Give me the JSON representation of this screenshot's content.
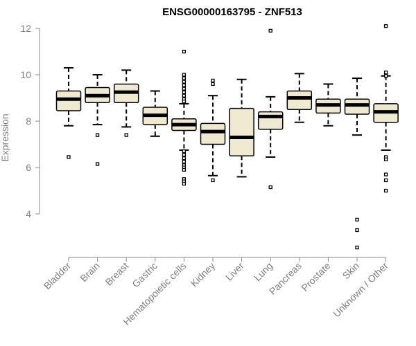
{
  "chart_data": {
    "type": "boxplot",
    "title": "ENSG00000163795 - ZNF513",
    "xlabel": "",
    "ylabel": "Expression",
    "ylim": [
      2.3,
      12.3
    ],
    "yticks": [
      4,
      6,
      8,
      10,
      12
    ],
    "box_fill": "#efe9d2",
    "categories": [
      "Bladder",
      "Brain",
      "Breast",
      "Gastric",
      "Hematopoietic cells",
      "Kidney",
      "Liver",
      "Lung",
      "Pancreas",
      "Prostate",
      "Skin",
      "Unknown / Other"
    ],
    "boxes": [
      {
        "whisker_low": 7.8,
        "q1": 8.45,
        "median": 8.95,
        "q3": 9.3,
        "whisker_high": 10.3,
        "outliers": [
          6.45
        ]
      },
      {
        "whisker_low": 7.85,
        "q1": 8.8,
        "median": 9.1,
        "q3": 9.45,
        "whisker_high": 10.0,
        "outliers": [
          7.4,
          6.15
        ]
      },
      {
        "whisker_low": 7.75,
        "q1": 8.8,
        "median": 9.25,
        "q3": 9.6,
        "whisker_high": 10.2,
        "outliers": [
          7.4
        ]
      },
      {
        "whisker_low": 7.35,
        "q1": 7.85,
        "median": 8.25,
        "q3": 8.6,
        "whisker_high": 9.3,
        "outliers": []
      },
      {
        "whisker_low": 6.75,
        "q1": 7.6,
        "median": 7.85,
        "q3": 8.1,
        "whisker_high": 8.75,
        "outliers": [
          11.0,
          10.0,
          9.85,
          9.7,
          9.55,
          9.4,
          9.25,
          9.1,
          8.95,
          8.85,
          6.7,
          6.55,
          6.4,
          6.25,
          6.1,
          6.0,
          5.9,
          5.5,
          5.4,
          5.3
        ]
      },
      {
        "whisker_low": 5.65,
        "q1": 7.0,
        "median": 7.55,
        "q3": 7.9,
        "whisker_high": 9.1,
        "outliers": [
          9.75,
          9.6,
          5.45
        ]
      },
      {
        "whisker_low": 5.6,
        "q1": 6.5,
        "median": 7.3,
        "q3": 8.55,
        "whisker_high": 9.8,
        "outliers": []
      },
      {
        "whisker_low": 6.45,
        "q1": 7.65,
        "median": 8.2,
        "q3": 8.4,
        "whisker_high": 9.05,
        "outliers": [
          11.9,
          5.15
        ]
      },
      {
        "whisker_low": 7.95,
        "q1": 8.5,
        "median": 9.0,
        "q3": 9.3,
        "whisker_high": 10.05,
        "outliers": []
      },
      {
        "whisker_low": 7.8,
        "q1": 8.35,
        "median": 8.7,
        "q3": 8.95,
        "whisker_high": 9.6,
        "outliers": []
      },
      {
        "whisker_low": 7.4,
        "q1": 8.3,
        "median": 8.7,
        "q3": 8.95,
        "whisker_high": 9.85,
        "outliers": [
          3.75,
          3.3,
          2.55
        ]
      },
      {
        "whisker_low": 6.75,
        "q1": 7.95,
        "median": 8.4,
        "q3": 8.75,
        "whisker_high": 9.95,
        "outliers": [
          12.1,
          10.1,
          9.95,
          6.45,
          6.35,
          5.7,
          5.45,
          5.0
        ]
      }
    ]
  }
}
